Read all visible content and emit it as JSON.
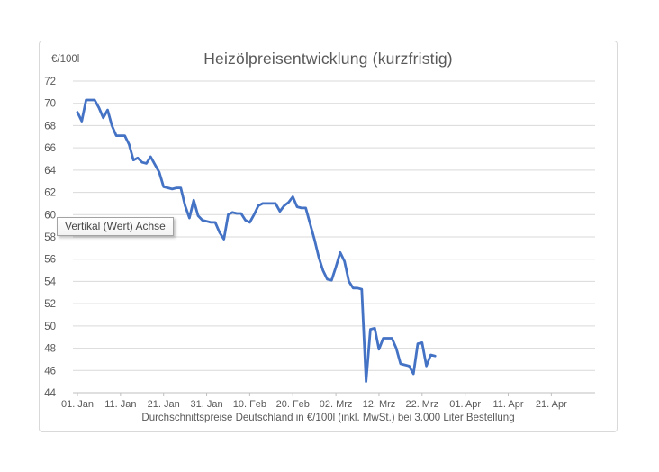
{
  "tooltip": {
    "text": "Vertikal (Wert) Achse"
  },
  "colors": {
    "series_line": "#4472C4",
    "gridline": "#d9d9d9",
    "axis_line": "#bfbfbf",
    "tick_label": "#595959",
    "title_text": "#595959"
  },
  "chart_data": {
    "type": "line",
    "title": "Heizölpreisentwicklung (kurzfristig)",
    "y_unit_label": "€/100l",
    "xlabel": "Durchschnittspreise Deutschland in €/100l (inkl. MwSt.) bei 3.000 Liter Bestellung",
    "ylim": [
      44,
      72
    ],
    "y_tick_step": 2,
    "grid": true,
    "x_tick_labels": [
      "01. Jan",
      "11. Jan",
      "21. Jan",
      "31. Jan",
      "10. Feb",
      "20. Feb",
      "02. Mrz",
      "12. Mrz",
      "22. Mrz",
      "01. Apr",
      "11. Apr",
      "21. Apr"
    ],
    "x_interval": "daily",
    "x_start": "01. Jan",
    "x_end": "25. Mrz",
    "x_axis_total_days": 121,
    "series": [
      {
        "color": "#4472C4",
        "values": [
          69.2,
          68.4,
          70.3,
          70.3,
          70.3,
          69.6,
          68.7,
          69.4,
          68.0,
          67.1,
          67.1,
          67.1,
          66.3,
          64.9,
          65.1,
          64.7,
          64.6,
          65.2,
          64.5,
          63.8,
          62.5,
          62.4,
          62.3,
          62.4,
          62.4,
          60.8,
          59.7,
          61.3,
          59.9,
          59.5,
          59.4,
          59.3,
          59.3,
          58.4,
          57.8,
          60.0,
          60.2,
          60.1,
          60.1,
          59.5,
          59.3,
          60.0,
          60.8,
          61.0,
          61.0,
          61.0,
          61.0,
          60.3,
          60.8,
          61.1,
          61.6,
          60.7,
          60.6,
          60.6,
          59.2,
          57.8,
          56.2,
          55.0,
          54.2,
          54.1,
          55.3,
          56.6,
          55.8,
          54.0,
          53.4,
          53.4,
          53.3,
          45.0,
          49.7,
          49.8,
          47.9,
          48.9,
          48.9,
          48.9,
          48.0,
          46.6,
          46.5,
          46.4,
          45.7,
          48.4,
          48.5,
          46.4,
          47.4,
          47.3
        ]
      }
    ]
  }
}
